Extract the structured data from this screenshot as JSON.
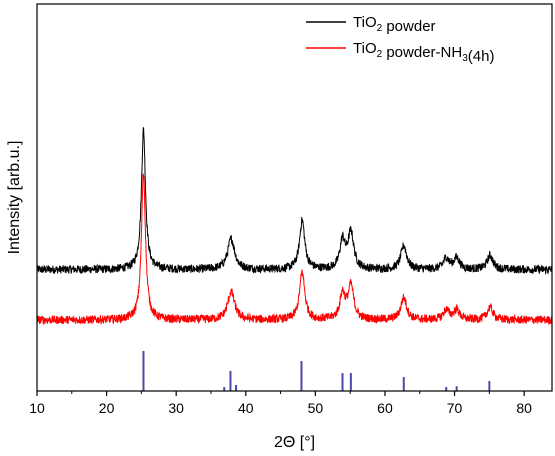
{
  "chart_data": {
    "type": "line",
    "xlabel": "2Θ [°]",
    "ylabel": "Intensity [arb.u.]",
    "xlim": [
      10,
      84
    ],
    "xticks": [
      10,
      20,
      30,
      40,
      50,
      60,
      70,
      80
    ],
    "yticks_shown": false,
    "legend_position": "top-right",
    "series": [
      {
        "name": "TiO2 powder",
        "legend_parts": [
          [
            "TiO",
            ""
          ],
          [
            "2",
            "sub"
          ],
          [
            " powder",
            ""
          ]
        ],
        "color": "#000000",
        "baseline": 0.36,
        "noise": 0.03,
        "peaks": [
          {
            "x": 25.3,
            "height": 1.0,
            "width": 0.35
          },
          {
            "x": 37.9,
            "height": 0.22,
            "width": 0.6
          },
          {
            "x": 48.1,
            "height": 0.35,
            "width": 0.45
          },
          {
            "x": 53.9,
            "height": 0.2,
            "width": 0.45
          },
          {
            "x": 55.1,
            "height": 0.26,
            "width": 0.5
          },
          {
            "x": 62.7,
            "height": 0.17,
            "width": 0.5
          },
          {
            "x": 68.8,
            "height": 0.08,
            "width": 0.5
          },
          {
            "x": 70.3,
            "height": 0.08,
            "width": 0.5
          },
          {
            "x": 75.1,
            "height": 0.1,
            "width": 0.5
          }
        ]
      },
      {
        "name": "TiO2 powder-NH3(4h)",
        "legend_parts": [
          [
            "TiO",
            ""
          ],
          [
            "2",
            "sub"
          ],
          [
            " powder-NH",
            ""
          ],
          [
            "3",
            "sub"
          ],
          [
            "(4h)",
            ""
          ]
        ],
        "color": "#ff0000",
        "baseline": 0.0,
        "noise": 0.03,
        "peaks": [
          {
            "x": 25.3,
            "height": 1.05,
            "width": 0.35
          },
          {
            "x": 37.9,
            "height": 0.2,
            "width": 0.6
          },
          {
            "x": 48.1,
            "height": 0.34,
            "width": 0.45
          },
          {
            "x": 53.9,
            "height": 0.18,
            "width": 0.45
          },
          {
            "x": 55.1,
            "height": 0.24,
            "width": 0.5
          },
          {
            "x": 62.7,
            "height": 0.16,
            "width": 0.5
          },
          {
            "x": 68.8,
            "height": 0.07,
            "width": 0.5
          },
          {
            "x": 70.3,
            "height": 0.07,
            "width": 0.5
          },
          {
            "x": 75.1,
            "height": 0.09,
            "width": 0.5
          }
        ]
      }
    ],
    "reference_lines": {
      "color": "#4a4aa8",
      "peaks": [
        {
          "x": 25.3,
          "intensity": 1.0
        },
        {
          "x": 36.9,
          "intensity": 0.1
        },
        {
          "x": 37.8,
          "intensity": 0.5
        },
        {
          "x": 38.6,
          "intensity": 0.15
        },
        {
          "x": 48.0,
          "intensity": 0.75
        },
        {
          "x": 53.9,
          "intensity": 0.45
        },
        {
          "x": 55.1,
          "intensity": 0.45
        },
        {
          "x": 62.7,
          "intensity": 0.35
        },
        {
          "x": 68.8,
          "intensity": 0.1
        },
        {
          "x": 70.3,
          "intensity": 0.12
        },
        {
          "x": 75.0,
          "intensity": 0.25
        }
      ]
    }
  }
}
